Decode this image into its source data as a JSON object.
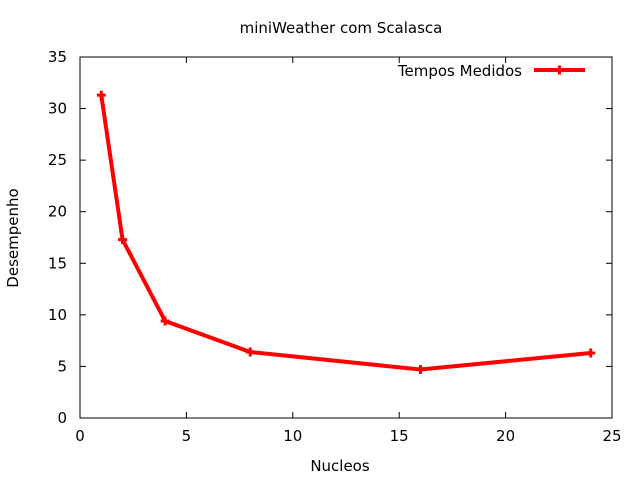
{
  "chart_data": {
    "type": "line",
    "title": "miniWeather com Scalasca",
    "xlabel": "Nucleos",
    "ylabel": "Desempenho",
    "xlim": [
      0,
      25
    ],
    "ylim": [
      0,
      35
    ],
    "xticks": [
      0,
      5,
      10,
      15,
      20,
      25
    ],
    "yticks": [
      0,
      5,
      10,
      15,
      20,
      25,
      30,
      35
    ],
    "grid": false,
    "legend_position": "top-right",
    "series": [
      {
        "name": "Tempos Medidos",
        "color": "#ff0000",
        "marker": "plus",
        "x": [
          1,
          2,
          4,
          8,
          16,
          24
        ],
        "y": [
          31.3,
          17.3,
          9.4,
          6.4,
          4.7,
          6.3
        ]
      }
    ]
  }
}
